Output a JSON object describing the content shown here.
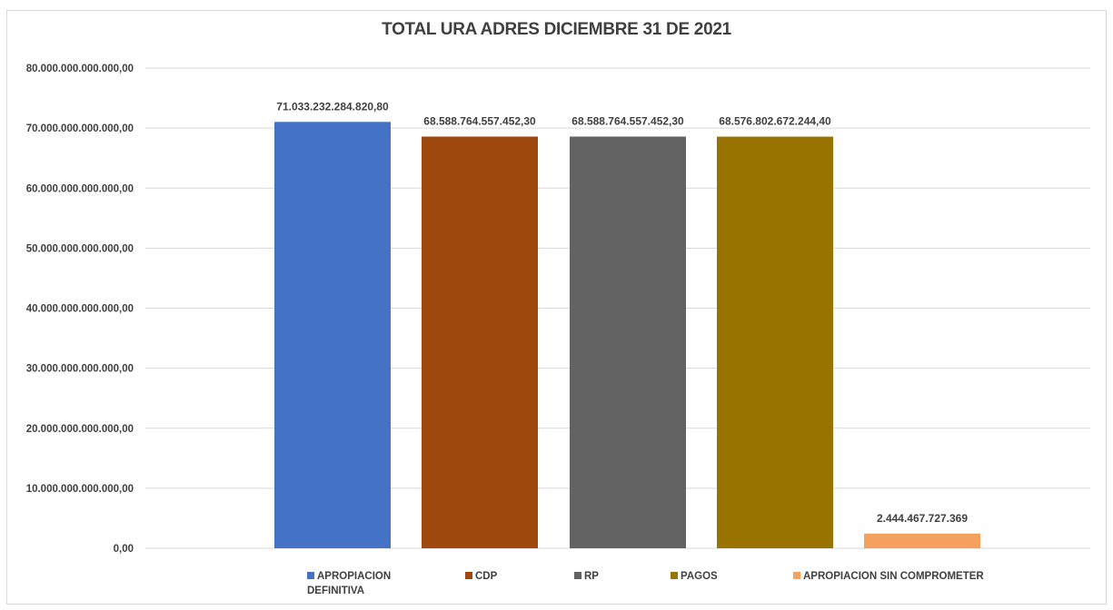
{
  "chart_data": {
    "type": "bar",
    "title": "TOTAL URA ADRES DICIEMBRE 31 DE 2021",
    "xlabel": "",
    "ylabel": "",
    "ylim": [
      0,
      80000000000000
    ],
    "yticks": [
      {
        "value": 0,
        "label": "0,00"
      },
      {
        "value": 10000000000000,
        "label": "10.000.000.000.000,00"
      },
      {
        "value": 20000000000000,
        "label": "20.000.000.000.000,00"
      },
      {
        "value": 30000000000000,
        "label": "30.000.000.000.000,00"
      },
      {
        "value": 40000000000000,
        "label": "40.000.000.000.000,00"
      },
      {
        "value": 50000000000000,
        "label": "50.000.000.000.000,00"
      },
      {
        "value": 60000000000000,
        "label": "60.000.000.000.000,00"
      },
      {
        "value": 70000000000000,
        "label": "70.000.000.000.000,00"
      },
      {
        "value": 80000000000000,
        "label": "80.000.000.000.000,00"
      }
    ],
    "grid": true,
    "legend_position": "bottom",
    "series": [
      {
        "name": "APROPIACION DEFINITIVA",
        "value": 71033232284820.8,
        "label": "71.033.232.284.820,80",
        "color": "#4472c4"
      },
      {
        "name": "CDP",
        "value": 68588764557452.3,
        "label": "68.588.764.557.452,30",
        "color": "#9e480e"
      },
      {
        "name": "RP",
        "value": 68588764557452.3,
        "label": "68.588.764.557.452,30",
        "color": "#636363"
      },
      {
        "name": "PAGOS",
        "value": 68576802672244.4,
        "label": "68.576.802.672.244,40",
        "color": "#997300"
      },
      {
        "name": "APROPIACION SIN COMPROMETER",
        "value": 2444467727369,
        "label": "2.444.467.727.369",
        "color": "#f4a160"
      }
    ]
  },
  "colors": {
    "gridline": "#d9d9d9",
    "text": "#404040"
  }
}
